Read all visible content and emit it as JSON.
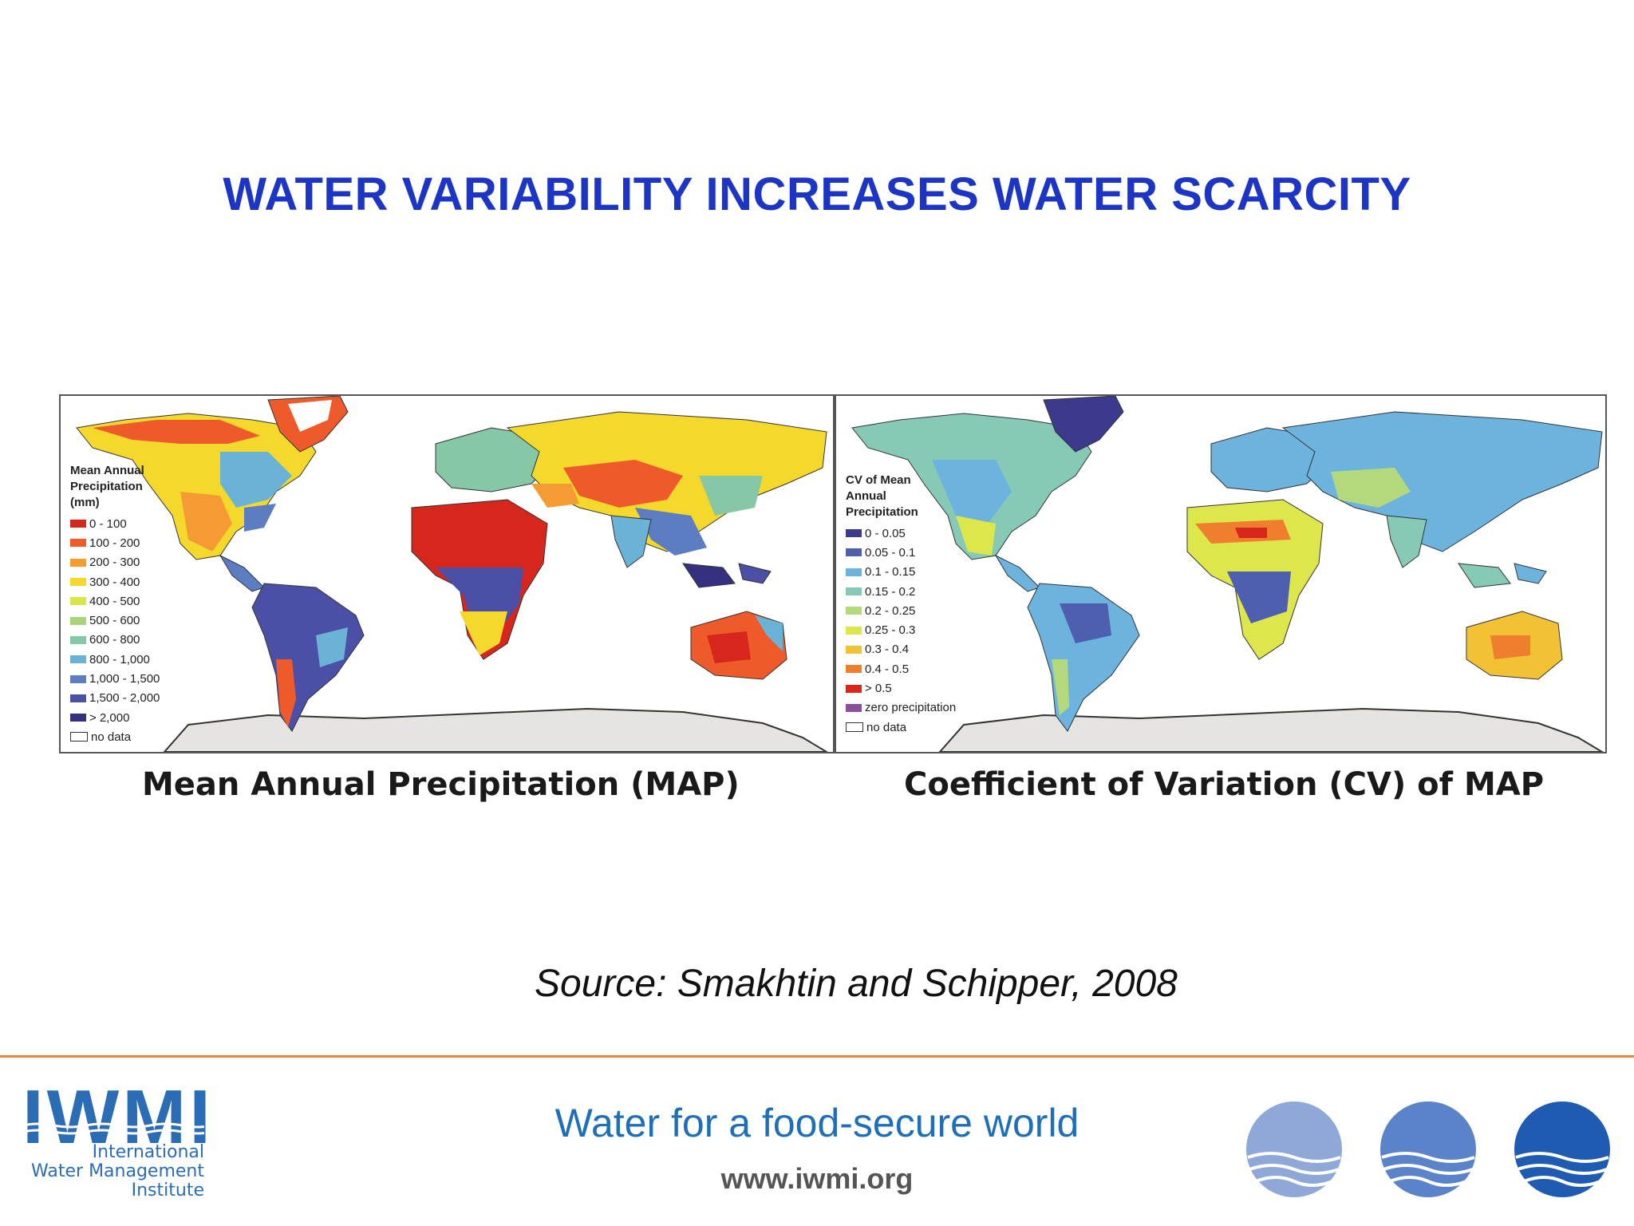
{
  "slide": {
    "title": "WATER VARIABILITY INCREASES WATER SCARCITY",
    "source": "Source: Smakhtin and Schipper, 2008"
  },
  "map_left": {
    "caption": "Mean Annual Precipitation  (MAP)",
    "legend_title_lines": [
      "Mean Annual",
      "Precipitation",
      "(mm)"
    ],
    "legend": [
      {
        "label": "0 - 100",
        "color": "#d7261b"
      },
      {
        "label": "100 - 200",
        "color": "#ee5a2a"
      },
      {
        "label": "200 - 300",
        "color": "#f59b34"
      },
      {
        "label": "300 - 400",
        "color": "#f4d92c"
      },
      {
        "label": "400 - 500",
        "color": "#d7e64a"
      },
      {
        "label": "500 - 600",
        "color": "#a9d57a"
      },
      {
        "label": "600 - 800",
        "color": "#85c7a6"
      },
      {
        "label": "800 - 1,000",
        "color": "#6ab3d6"
      },
      {
        "label": "1,000 - 1,500",
        "color": "#5d7dc3"
      },
      {
        "label": "1,500 - 2,000",
        "color": "#4b4fa6"
      },
      {
        "label": "> 2,000",
        "color": "#35307f"
      },
      {
        "label": "no data",
        "color": "#ffffff"
      }
    ]
  },
  "map_right": {
    "caption": "Coefficient  of Variation  (CV)  of MAP",
    "legend_title_lines": [
      "CV of Mean",
      "Annual",
      "Precipitation"
    ],
    "legend": [
      {
        "label": "0 - 0.05",
        "color": "#3b3a8c"
      },
      {
        "label": "0.05 - 0.1",
        "color": "#4f5fb0"
      },
      {
        "label": "0.1 - 0.15",
        "color": "#6cb3de"
      },
      {
        "label": "0.15 - 0.2",
        "color": "#86c9b6"
      },
      {
        "label": "0.2 - 0.25",
        "color": "#b3d97c"
      },
      {
        "label": "0.25 - 0.3",
        "color": "#dde64a"
      },
      {
        "label": "0.3 - 0.4",
        "color": "#f3c234"
      },
      {
        "label": "0.4 - 0.5",
        "color": "#ef7e2e"
      },
      {
        "label": "> 0.5",
        "color": "#d7261b"
      },
      {
        "label": "zero precipitation",
        "color": "#8b4fa0"
      },
      {
        "label": "no data",
        "color": "#ffffff"
      }
    ]
  },
  "footer": {
    "logo_text": "IWMI",
    "institute_lines": [
      "International",
      "Water Management",
      "Institute"
    ],
    "tagline": "Water for a food-secure world",
    "url": "www.iwmi.org",
    "circle_colors": [
      "#8fa8d8",
      "#5b83c9",
      "#1f5bb0"
    ]
  }
}
